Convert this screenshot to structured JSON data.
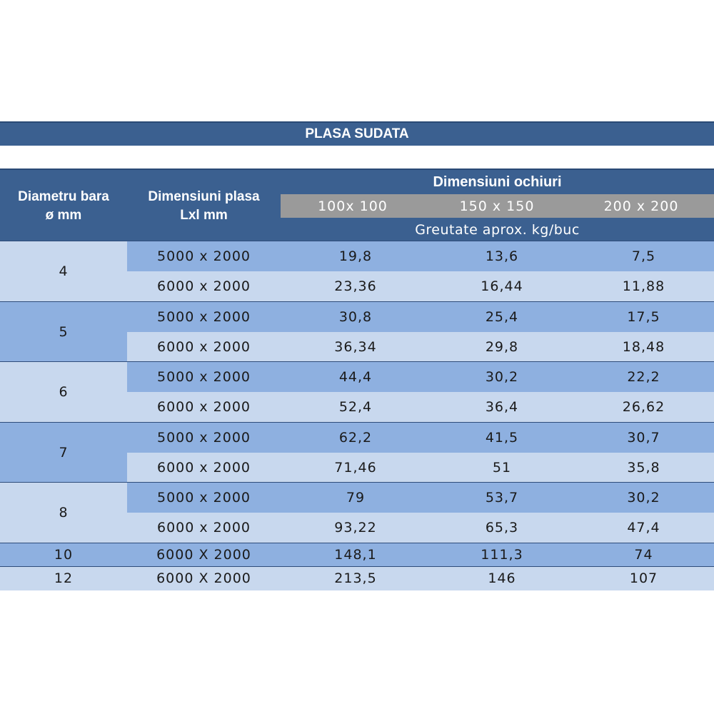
{
  "table": {
    "title": "PLASA SUDATA",
    "header": {
      "col1_line1": "Diametru bara",
      "col1_line2": "ø mm",
      "col2_line1": "Dimensiuni plasa",
      "col2_line2": "Lxl  mm",
      "group_title": "Dimensiuni ochiuri",
      "mesh_sizes": [
        "100x 100",
        "150 x 150",
        "200 x 200"
      ],
      "weight_label": "Greutate  aprox.  kg/buc"
    },
    "groups": [
      {
        "diameter": "4",
        "rows": [
          {
            "size": "5000 x 2000",
            "w100": "19,8",
            "w150": "13,6",
            "w200": "7,5"
          },
          {
            "size": "6000 x 2000",
            "w100": "23,36",
            "w150": "16,44",
            "w200": "11,88"
          }
        ]
      },
      {
        "diameter": "5",
        "rows": [
          {
            "size": "5000 x 2000",
            "w100": "30,8",
            "w150": "25,4",
            "w200": "17,5"
          },
          {
            "size": "6000 x 2000",
            "w100": "36,34",
            "w150": "29,8",
            "w200": "18,48"
          }
        ]
      },
      {
        "diameter": "6",
        "rows": [
          {
            "size": "5000 x 2000",
            "w100": "44,4",
            "w150": "30,2",
            "w200": "22,2"
          },
          {
            "size": "6000 x 2000",
            "w100": "52,4",
            "w150": "36,4",
            "w200": "26,62"
          }
        ]
      },
      {
        "diameter": "7",
        "rows": [
          {
            "size": "5000 x 2000",
            "w100": "62,2",
            "w150": "41,5",
            "w200": "30,7"
          },
          {
            "size": "6000 x 2000",
            "w100": "71,46",
            "w150": "51",
            "w200": "35,8"
          }
        ]
      },
      {
        "diameter": "8",
        "rows": [
          {
            "size": "5000 x 2000",
            "w100": "79",
            "w150": "53,7",
            "w200": "30,2"
          },
          {
            "size": "6000 x 2000",
            "w100": "93,22",
            "w150": "65,3",
            "w200": "47,4"
          }
        ]
      },
      {
        "diameter": "10",
        "rows": [
          {
            "size": "6000 X 2000",
            "w100": "148,1",
            "w150": "111,3",
            "w200": "74"
          }
        ]
      },
      {
        "diameter": "12",
        "rows": [
          {
            "size": "6000 X 2000",
            "w100": "213,5",
            "w150": "146",
            "w200": "107"
          }
        ]
      }
    ]
  },
  "colors": {
    "header_blue": "#3b6090",
    "dark_row": "#8eb0e0",
    "light_row": "#c8d8ee",
    "mesh_gray": "#9a9a9a"
  }
}
